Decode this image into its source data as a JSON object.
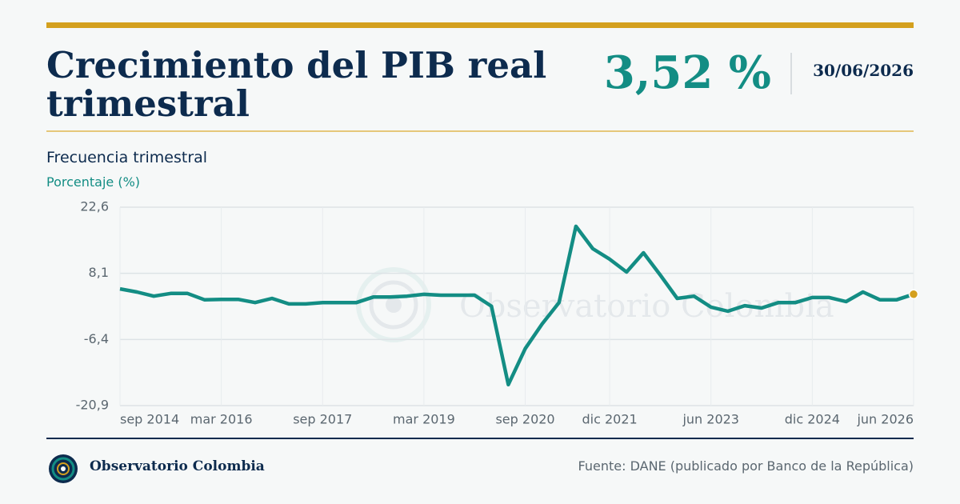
{
  "header": {
    "title": "Crecimiento del PIB real trimestral",
    "headline_value": "3,52 %",
    "date": "30/06/2026"
  },
  "chart_data": {
    "type": "line",
    "subtitle": "Frecuencia trimestral",
    "y_label": "Porcentaje (%)",
    "watermark": "Observatorio Colombia",
    "categories": [
      "sep 2014",
      null,
      null,
      null,
      null,
      null,
      "mar 2016",
      null,
      null,
      null,
      null,
      null,
      "sep 2017",
      null,
      null,
      null,
      null,
      null,
      "mar 2019",
      null,
      null,
      null,
      null,
      null,
      "sep 2020",
      null,
      null,
      null,
      null,
      "dic 2021",
      null,
      null,
      null,
      null,
      null,
      "jun 2023",
      null,
      null,
      null,
      null,
      null,
      "dic 2024",
      null,
      null,
      null,
      null,
      null,
      "jun 2026"
    ],
    "series": [
      {
        "name": "Crecimiento del PIB real trimestral",
        "color": "#138d84",
        "last_point_color": "#d4a01e",
        "values": [
          4.7,
          4.0,
          3.1,
          3.7,
          3.7,
          2.3,
          2.4,
          2.4,
          1.7,
          2.6,
          1.4,
          1.4,
          1.7,
          1.7,
          1.7,
          2.9,
          2.9,
          3.1,
          3.5,
          3.3,
          3.3,
          3.3,
          0.9,
          -16.3,
          -8.4,
          -3.0,
          1.7,
          18.4,
          13.5,
          11.2,
          8.4,
          12.6,
          7.7,
          2.6,
          3.1,
          0.7,
          -0.2,
          1.0,
          0.5,
          1.7,
          1.7,
          2.8,
          2.8,
          1.9,
          4.0,
          2.3,
          2.3,
          3.52
        ]
      }
    ],
    "ylim": [
      -20.9,
      22.6
    ],
    "yticks": [
      {
        "value": -20.9,
        "label": "-20,9"
      },
      {
        "value": -6.4,
        "label": "-6,4"
      },
      {
        "value": 8.1,
        "label": "8,1"
      },
      {
        "value": 22.6,
        "label": "22,6"
      }
    ],
    "grid": true
  },
  "footer": {
    "brand": "Observatorio Colombia",
    "source": "Fuente: DANE (publicado por Banco de la República)"
  }
}
